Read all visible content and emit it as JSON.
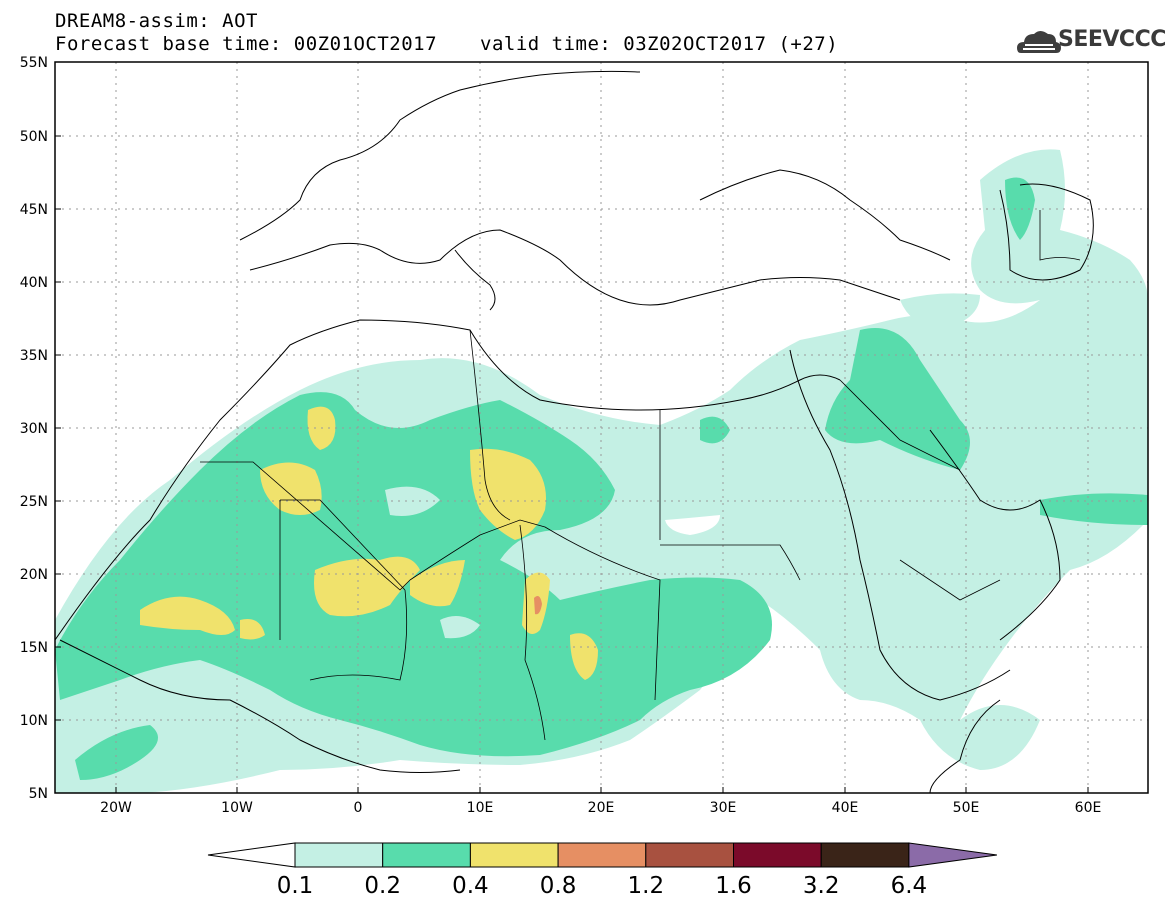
{
  "header": {
    "line1": "DREAM8-assim: AOT",
    "line2": "Forecast base time: 00Z01OCT2017",
    "valid": "valid time: 03Z02OCT2017 (+27)"
  },
  "logo": {
    "text": "SEEVCCC",
    "icon": "cloud-icon"
  },
  "axes": {
    "lat_labels": [
      "55N",
      "50N",
      "45N",
      "40N",
      "35N",
      "30N",
      "25N",
      "20N",
      "15N",
      "10N",
      "5N"
    ],
    "lon_labels": [
      "20W",
      "10W",
      "0",
      "10E",
      "20E",
      "30E",
      "40E",
      "50E",
      "60E"
    ]
  },
  "colorbar": {
    "labels": [
      "0.1",
      "0.2",
      "0.4",
      "0.8",
      "1.2",
      "1.6",
      "3.2",
      "6.4"
    ],
    "colors": [
      "#ffffff",
      "#c4f0e4",
      "#58dcac",
      "#f0e26c",
      "#e68f63",
      "#a85140",
      "#7b0a2a",
      "#3a2418",
      "#8b6ba8"
    ]
  }
}
